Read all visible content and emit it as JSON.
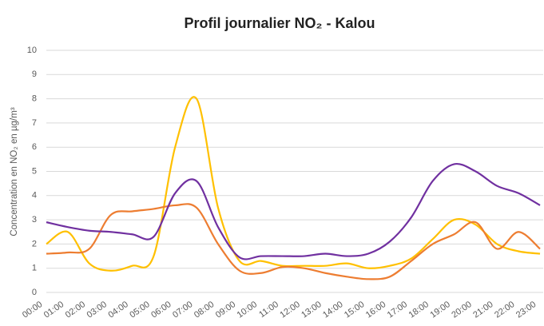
{
  "chart_data": {
    "type": "line",
    "title": "Profil journalier NO₂ - Kalou",
    "y_label": "Concentration en NO₂ en µg/m³",
    "categories": [
      "00:00",
      "01:00",
      "02:00",
      "03:00",
      "04:00",
      "05:00",
      "06:00",
      "07:00",
      "08:00",
      "09:00",
      "10:00",
      "11:00",
      "12:00",
      "13:00",
      "14:00",
      "15:00",
      "16:00",
      "17:00",
      "18:00",
      "19:00",
      "20:00",
      "21:00",
      "22:00",
      "23:00"
    ],
    "series": [
      {
        "color": "#ffc000",
        "values": [
          2.0,
          2.5,
          1.2,
          0.9,
          1.1,
          1.5,
          6.0,
          8.0,
          3.5,
          1.3,
          1.3,
          1.1,
          1.1,
          1.1,
          1.2,
          1.0,
          1.1,
          1.4,
          2.2,
          3.0,
          2.8,
          2.0,
          1.7,
          1.6
        ]
      },
      {
        "color": "#ed7d31",
        "values": [
          1.6,
          1.65,
          1.8,
          3.2,
          3.35,
          3.45,
          3.6,
          3.5,
          2.0,
          0.9,
          0.8,
          1.05,
          1.0,
          0.8,
          0.65,
          0.55,
          0.65,
          1.3,
          2.0,
          2.4,
          2.9,
          1.8,
          2.5,
          1.8
        ]
      },
      {
        "color": "#7030a0",
        "values": [
          2.9,
          2.7,
          2.55,
          2.5,
          2.4,
          2.3,
          4.1,
          4.6,
          2.7,
          1.45,
          1.5,
          1.5,
          1.5,
          1.6,
          1.5,
          1.6,
          2.1,
          3.1,
          4.6,
          5.3,
          5.0,
          4.4,
          4.1,
          3.6
        ]
      }
    ],
    "ylim": [
      0,
      10
    ],
    "yticks": [
      0,
      1,
      2,
      3,
      4,
      5,
      6,
      7,
      8,
      9,
      10
    ],
    "grid": true
  }
}
